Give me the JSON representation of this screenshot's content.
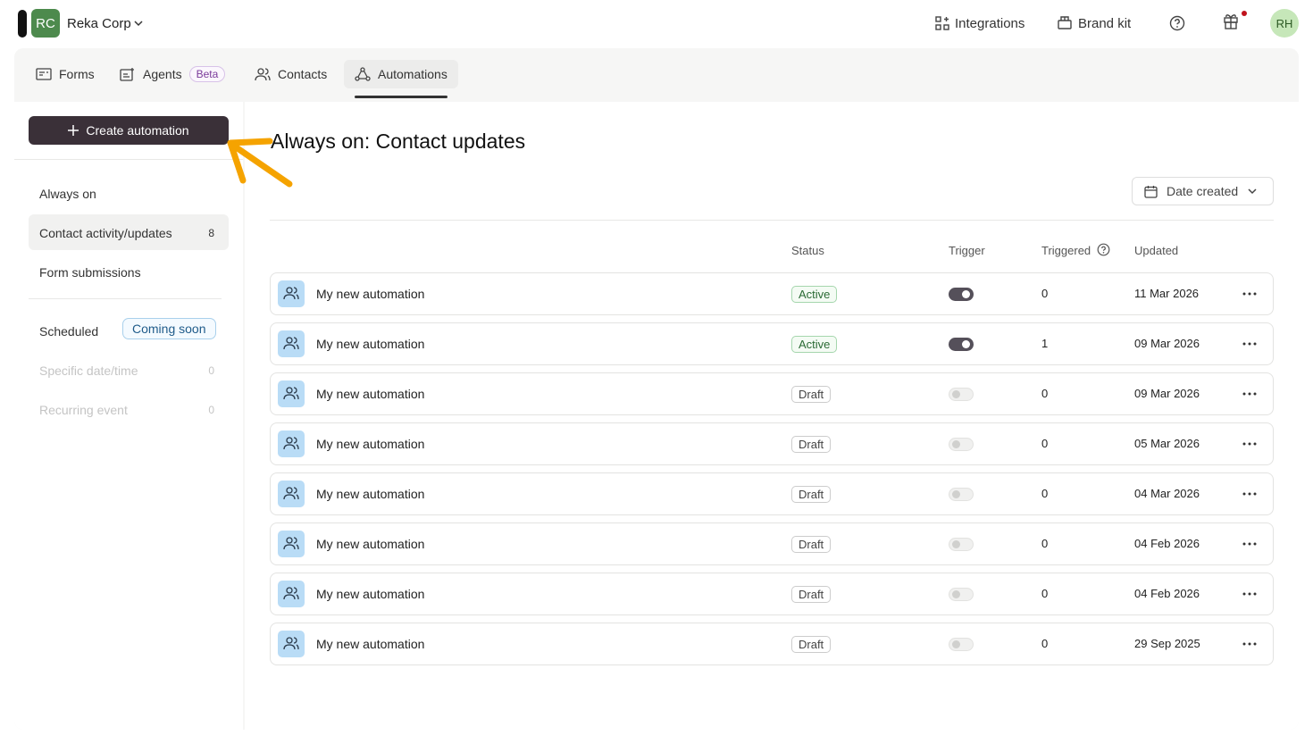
{
  "header": {
    "org_initials": "RC",
    "org_name": "Reka Corp",
    "links": [
      "Integrations",
      "Brand kit"
    ],
    "avatar": "RH"
  },
  "tabs": [
    {
      "label": "Forms"
    },
    {
      "label": "Agents",
      "badge": "Beta"
    },
    {
      "label": "Contacts"
    },
    {
      "label": "Automations",
      "active": true
    }
  ],
  "sidebar": {
    "create_button": "Create automation",
    "sections": [
      {
        "title": "Always on",
        "items": [
          {
            "label": "Contact activity/updates",
            "count": 8,
            "selected": true
          },
          {
            "label": "Form submissions"
          }
        ]
      },
      {
        "title": "Scheduled",
        "badge": "Coming soon",
        "items": [
          {
            "label": "Specific date/time",
            "count": 0,
            "disabled": true
          },
          {
            "label": "Recurring event",
            "count": 0,
            "disabled": true
          }
        ]
      }
    ]
  },
  "main": {
    "title": "Always on: Contact updates",
    "sort": "Date created",
    "columns": [
      "Status",
      "Trigger",
      "Triggered",
      "Updated"
    ],
    "rows": [
      {
        "name": "My new automation",
        "status": "Active",
        "trigger": true,
        "triggered": 0,
        "updated": "11 Mar 2026"
      },
      {
        "name": "My new automation",
        "status": "Active",
        "trigger": true,
        "triggered": 1,
        "updated": "09 Mar 2026"
      },
      {
        "name": "My new automation",
        "status": "Draft",
        "trigger": false,
        "triggered": 0,
        "updated": "09 Mar 2026"
      },
      {
        "name": "My new automation",
        "status": "Draft",
        "trigger": false,
        "triggered": 0,
        "updated": "05 Mar 2026"
      },
      {
        "name": "My new automation",
        "status": "Draft",
        "trigger": false,
        "triggered": 0,
        "updated": "04 Mar 2026"
      },
      {
        "name": "My new automation",
        "status": "Draft",
        "trigger": false,
        "triggered": 0,
        "updated": "04 Feb 2026"
      },
      {
        "name": "My new automation",
        "status": "Draft",
        "trigger": false,
        "triggered": 0,
        "updated": "04 Feb 2026"
      },
      {
        "name": "My new automation",
        "status": "Draft",
        "trigger": false,
        "triggered": 0,
        "updated": "29 Sep 2025"
      }
    ]
  }
}
